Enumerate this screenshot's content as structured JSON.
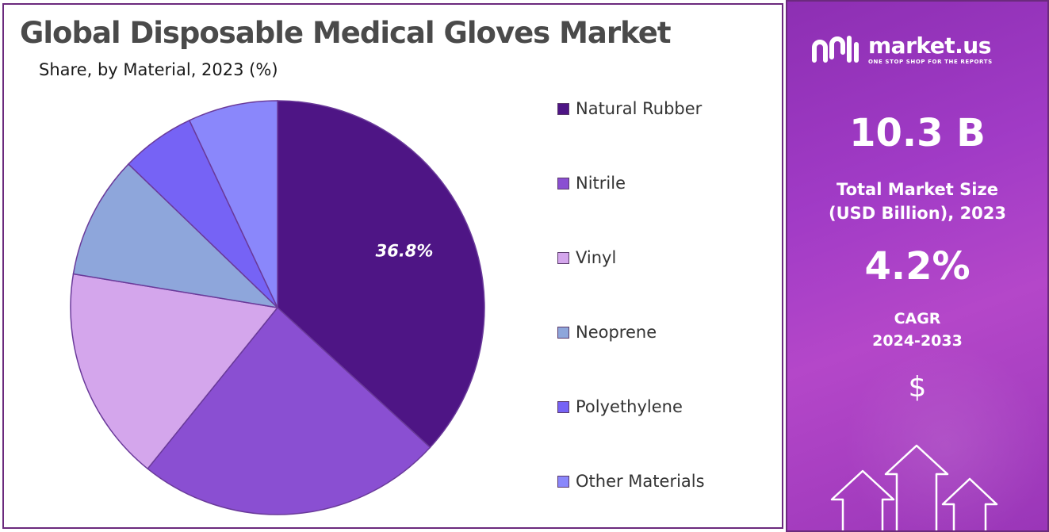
{
  "title": "Global Disposable Medical Gloves Market",
  "subtitle": "Share, by Material, 2023 (%)",
  "chart_data": {
    "type": "pie",
    "categories": [
      "Natural Rubber",
      "Nitrile",
      "Vinyl",
      "Neoprene",
      "Polyethylene",
      "Other Materials"
    ],
    "values": [
      36.8,
      24.0,
      16.8,
      9.6,
      5.8,
      7.0
    ],
    "colors": [
      "#4e1585",
      "#8a4fd2",
      "#d4a6ec",
      "#8ea6db",
      "#7663f5",
      "#8a87fb"
    ],
    "data_labels": [
      "36.8%",
      "",
      "",
      "",
      "",
      ""
    ],
    "legend_position": "right",
    "start": "top, clockwise"
  },
  "legend": [
    {
      "label": "Natural Rubber",
      "color": "#4e1585"
    },
    {
      "label": "Nitrile",
      "color": "#8a4fd2"
    },
    {
      "label": "Vinyl",
      "color": "#d4a6ec"
    },
    {
      "label": "Neoprene",
      "color": "#8ea6db"
    },
    {
      "label": "Polyethylene",
      "color": "#7663f5"
    },
    {
      "label": "Other Materials",
      "color": "#8a87fb"
    }
  ],
  "side_panel": {
    "brand_name": "market.us",
    "brand_tagline": "ONE STOP SHOP FOR THE REPORTS",
    "market_size": "10.3 B",
    "market_size_label_line1": "Total Market Size",
    "market_size_label_line2": "(USD Billion), 2023",
    "cagr": "4.2%",
    "cagr_label_line1": "CAGR",
    "cagr_label_line2": "2024-2033",
    "currency_symbol": "$",
    "logo_icon": "market-us-logo-icon",
    "decor_icon": "growth-arrows-icon"
  }
}
